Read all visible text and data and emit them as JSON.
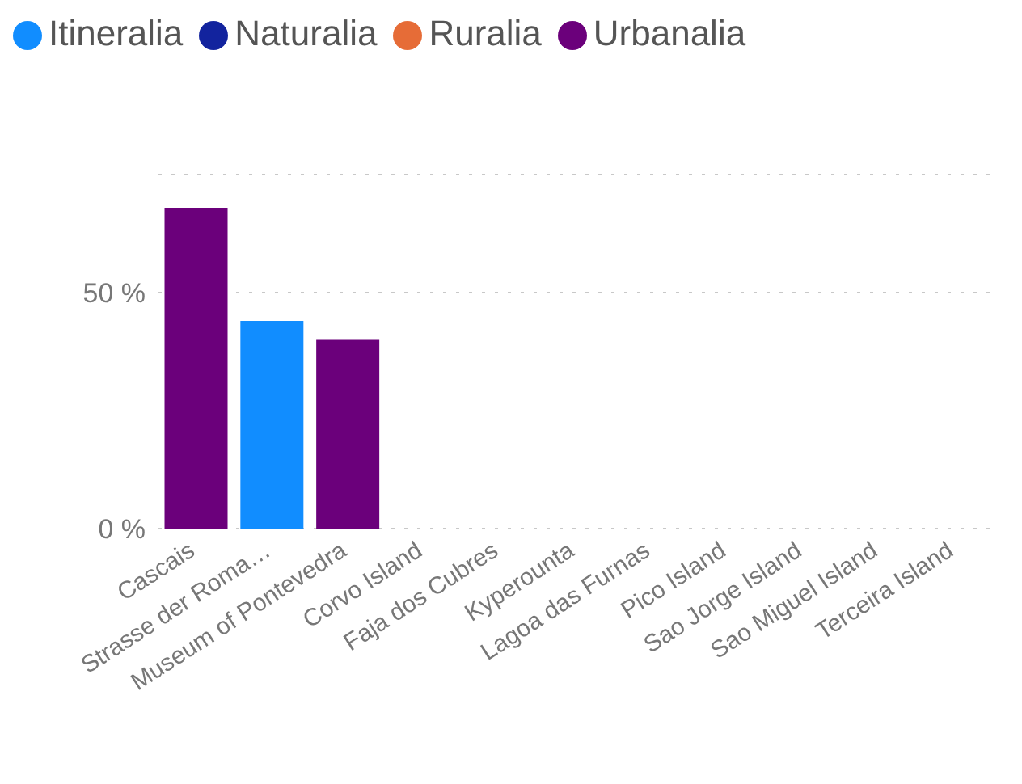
{
  "chart_data": {
    "type": "bar",
    "stacked": true,
    "categories": [
      "Cascais",
      "Strasse der Roma…",
      "Museum of Pontevedra",
      "Corvo Island",
      "Faja dos Cubres",
      "Kyperounta",
      "Lagoa das Furnas",
      "Pico Island",
      "Sao Jorge Island",
      "Sao Miguel Island",
      "Terceira Island"
    ],
    "series": [
      {
        "name": "Itineralia",
        "color": "#118dff",
        "values": [
          null,
          44,
          null,
          null,
          null,
          null,
          null,
          null,
          null,
          null,
          null
        ]
      },
      {
        "name": "Naturalia",
        "color": "#12239e",
        "values": [
          null,
          null,
          null,
          null,
          null,
          null,
          null,
          null,
          null,
          null,
          null
        ]
      },
      {
        "name": "Ruralia",
        "color": "#e66c37",
        "values": [
          null,
          null,
          null,
          null,
          null,
          null,
          null,
          null,
          null,
          null,
          null
        ]
      },
      {
        "name": "Urbanalia",
        "color": "#6b007b",
        "values": [
          68,
          null,
          40,
          null,
          null,
          null,
          null,
          null,
          null,
          null,
          null
        ]
      }
    ],
    "ylim": [
      0,
      75
    ],
    "yticks": [
      {
        "value": 0,
        "label": "0 %"
      },
      {
        "value": 50,
        "label": "50 %"
      }
    ],
    "grid": "y",
    "legend": "top left"
  }
}
